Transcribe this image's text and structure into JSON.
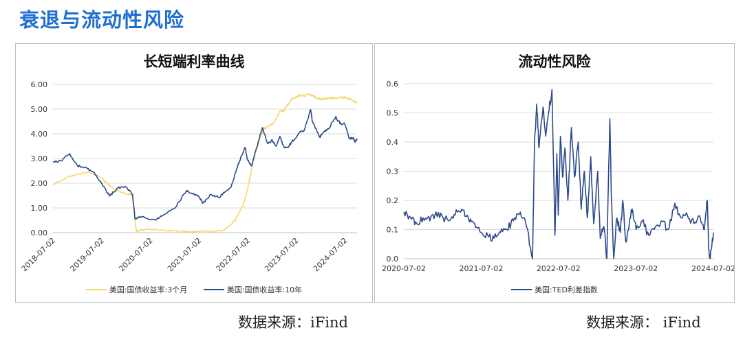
{
  "page": {
    "title": "衰退与流动性风险"
  },
  "colors": {
    "gold": "#f5d66b",
    "navy": "#2b4a8b",
    "accent": "#1f6fd1"
  },
  "sources": {
    "left": "数据来源：iFind",
    "right": "数据来源： iFind"
  },
  "chart_data": [
    {
      "type": "line",
      "title": "长短端利率曲线",
      "ylim": [
        0,
        6
      ],
      "yticks": [
        "0.00",
        "1.00",
        "2.00",
        "3.00",
        "4.00",
        "5.00",
        "6.00"
      ],
      "xticks": [
        "2018-07-02",
        "2019-07-02",
        "2020-07-02",
        "2021-07-02",
        "2022-07-02",
        "2023-07-02",
        "2024-07-02"
      ],
      "xrange": [
        "2018-07-02",
        "2024-10-01"
      ],
      "grid": true,
      "legend_position": "bottom",
      "series": [
        {
          "name": "美国:国债收益率:3个月",
          "color": "#f5d66b",
          "x": [
            "2018-07-02",
            "2018-10-01",
            "2019-01-02",
            "2019-04-01",
            "2019-07-01",
            "2019-08-15",
            "2019-10-01",
            "2020-01-02",
            "2020-02-15",
            "2020-03-20",
            "2020-05-01",
            "2020-07-01",
            "2020-10-01",
            "2021-01-04",
            "2021-04-01",
            "2021-07-01",
            "2021-10-01",
            "2022-01-03",
            "2022-03-01",
            "2022-04-01",
            "2022-05-02",
            "2022-06-01",
            "2022-07-01",
            "2022-08-01",
            "2022-09-01",
            "2022-10-03",
            "2022-11-01",
            "2022-12-01",
            "2023-01-03",
            "2023-02-01",
            "2023-03-01",
            "2023-04-03",
            "2023-05-01",
            "2023-06-01",
            "2023-07-03",
            "2023-08-01",
            "2023-09-01",
            "2023-10-02",
            "2023-11-01",
            "2023-12-01",
            "2024-01-02",
            "2024-02-01",
            "2024-03-01",
            "2024-04-01",
            "2024-05-01",
            "2024-06-03",
            "2024-07-01",
            "2024-08-01",
            "2024-09-03",
            "2024-10-01"
          ],
          "y": [
            1.95,
            2.2,
            2.38,
            2.44,
            2.2,
            1.99,
            1.75,
            1.55,
            1.55,
            0.05,
            0.12,
            0.14,
            0.1,
            0.08,
            0.02,
            0.05,
            0.04,
            0.08,
            0.35,
            0.5,
            0.85,
            1.15,
            1.72,
            2.55,
            3.3,
            3.8,
            4.2,
            4.3,
            4.4,
            4.6,
            4.9,
            4.95,
            5.2,
            5.4,
            5.5,
            5.55,
            5.55,
            5.6,
            5.55,
            5.45,
            5.4,
            5.42,
            5.45,
            5.45,
            5.45,
            5.46,
            5.46,
            5.42,
            5.35,
            5.25
          ]
        },
        {
          "name": "美国:国债收益率:10年",
          "color": "#2b4a8b",
          "x": [
            "2018-07-02",
            "2018-09-01",
            "2018-11-05",
            "2019-01-02",
            "2019-03-01",
            "2019-05-01",
            "2019-07-01",
            "2019-08-15",
            "2019-09-03",
            "2019-11-01",
            "2020-01-02",
            "2020-02-20",
            "2020-03-09",
            "2020-05-01",
            "2020-08-04",
            "2020-10-01",
            "2021-01-04",
            "2021-03-31",
            "2021-05-03",
            "2021-07-01",
            "2021-08-02",
            "2021-10-01",
            "2021-12-01",
            "2022-01-03",
            "2022-03-01",
            "2022-04-01",
            "2022-05-02",
            "2022-06-14",
            "2022-07-01",
            "2022-08-01",
            "2022-09-01",
            "2022-10-21",
            "2022-11-01",
            "2022-12-01",
            "2023-01-03",
            "2023-02-01",
            "2023-03-01",
            "2023-04-03",
            "2023-05-01",
            "2023-06-01",
            "2023-07-03",
            "2023-08-01",
            "2023-09-01",
            "2023-10-19",
            "2023-11-01",
            "2023-12-27",
            "2024-01-02",
            "2024-02-01",
            "2024-03-01",
            "2024-04-25",
            "2024-05-01",
            "2024-06-03",
            "2024-07-01",
            "2024-08-05",
            "2024-09-03",
            "2024-09-16",
            "2024-10-01"
          ],
          "y": [
            2.85,
            2.9,
            3.2,
            2.7,
            2.65,
            2.45,
            2.0,
            1.6,
            1.5,
            1.8,
            1.85,
            1.55,
            0.55,
            0.65,
            0.52,
            0.7,
            1.0,
            1.7,
            1.6,
            1.45,
            1.2,
            1.55,
            1.42,
            1.63,
            1.85,
            2.4,
            2.9,
            3.45,
            2.95,
            2.7,
            3.3,
            4.25,
            4.05,
            3.6,
            3.75,
            3.5,
            3.9,
            3.45,
            3.45,
            3.7,
            3.85,
            4.1,
            4.15,
            4.98,
            4.5,
            3.85,
            3.95,
            4.1,
            4.2,
            4.7,
            4.6,
            4.4,
            4.4,
            3.8,
            3.85,
            3.65,
            3.8
          ]
        }
      ]
    },
    {
      "type": "line",
      "title": "流动性风险",
      "ylim": [
        0,
        0.6
      ],
      "yticks": [
        "0.0",
        "0.1",
        "0.2",
        "0.3",
        "0.4",
        "0.5",
        "0.6"
      ],
      "xticks": [
        "2020-07-02",
        "2021-07-02",
        "2022-07-02",
        "2023-07-02",
        "2024-07-02"
      ],
      "xrange": [
        "2020-07-02",
        "2024-07-02"
      ],
      "grid": true,
      "legend_position": "bottom",
      "series": [
        {
          "name": "美国:TED利差指数",
          "color": "#2b4a8b",
          "x": [
            "2020-07-02",
            "2020-08-03",
            "2020-09-01",
            "2020-10-01",
            "2020-11-02",
            "2020-12-01",
            "2021-01-04",
            "2021-02-01",
            "2021-03-01",
            "2021-04-01",
            "2021-05-03",
            "2021-06-01",
            "2021-07-01",
            "2021-08-02",
            "2021-09-01",
            "2021-10-01",
            "2021-11-01",
            "2021-12-01",
            "2022-01-03",
            "2022-02-01",
            "2022-03-01",
            "2022-03-11",
            "2022-03-21",
            "2022-04-01",
            "2022-04-20",
            "2022-05-02",
            "2022-05-16",
            "2022-06-01",
            "2022-06-15",
            "2022-06-24",
            "2022-07-01",
            "2022-07-11",
            "2022-07-21",
            "2022-08-01",
            "2022-08-15",
            "2022-09-01",
            "2022-09-15",
            "2022-10-03",
            "2022-10-17",
            "2022-11-01",
            "2022-11-15",
            "2022-12-01",
            "2022-12-15",
            "2023-01-03",
            "2023-01-15",
            "2023-02-01",
            "2023-02-15",
            "2023-03-01",
            "2023-03-09",
            "2023-03-20",
            "2023-04-03",
            "2023-04-20",
            "2023-05-01",
            "2023-05-15",
            "2023-06-01",
            "2023-06-15",
            "2023-07-03",
            "2023-08-01",
            "2023-09-01",
            "2023-10-02",
            "2023-11-01",
            "2023-12-01",
            "2024-01-02",
            "2024-02-01",
            "2024-03-01",
            "2024-04-01",
            "2024-05-01",
            "2024-05-20",
            "2024-06-03",
            "2024-06-10",
            "2024-06-17",
            "2024-07-02"
          ],
          "y": [
            0.16,
            0.14,
            0.12,
            0.14,
            0.13,
            0.16,
            0.14,
            0.13,
            0.15,
            0.17,
            0.14,
            0.12,
            0.09,
            0.08,
            0.07,
            0.09,
            0.1,
            0.13,
            0.16,
            0.11,
            0.0,
            0.4,
            0.53,
            0.38,
            0.52,
            0.42,
            0.5,
            0.58,
            0.08,
            0.36,
            0.15,
            0.42,
            0.28,
            0.38,
            0.2,
            0.45,
            0.28,
            0.4,
            0.17,
            0.3,
            0.14,
            0.35,
            0.12,
            0.3,
            0.07,
            0.11,
            0.0,
            0.48,
            0.2,
            0.0,
            0.14,
            0.09,
            0.2,
            0.06,
            0.12,
            0.17,
            0.1,
            0.13,
            0.08,
            0.11,
            0.13,
            0.1,
            0.19,
            0.14,
            0.15,
            0.12,
            0.14,
            0.1,
            0.2,
            0.03,
            0.0,
            0.09
          ]
        }
      ]
    }
  ]
}
